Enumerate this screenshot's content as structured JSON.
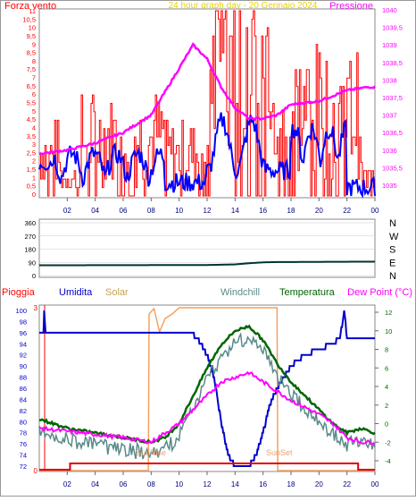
{
  "top_panel": {
    "left_title": "Forza vento",
    "center_title": "24 hour graph day - 20 Gennaio 2024",
    "right_title": "Pressione",
    "y_left_ticks": [
      "0",
      "0,5",
      "1",
      "1,5",
      "2",
      "2,5",
      "3",
      "3,5",
      "4",
      "4,5",
      "5",
      "5,5",
      "6",
      "6,5",
      "7",
      "7,5",
      "8",
      "8,5",
      "9",
      "9,5",
      "10",
      "10,5",
      "11"
    ],
    "y_right_ticks": [
      "1035",
      "1035,5",
      "1036",
      "1036,5",
      "1037",
      "1037,5",
      "1038",
      "1038,5",
      "1039",
      "1039,5",
      "1040"
    ],
    "x_ticks": [
      "02",
      "04",
      "06",
      "08",
      "10",
      "12",
      "14",
      "16",
      "18",
      "20",
      "22",
      "00"
    ]
  },
  "direction_panel": {
    "y_ticks": [
      "0",
      "90",
      "180",
      "270",
      "360"
    ],
    "compass": [
      "N",
      "W",
      "S",
      "E",
      "N"
    ]
  },
  "bottom_panel": {
    "labels": {
      "pioggia": "Pioggia",
      "umidita": "Umidita",
      "solar": "Solar",
      "windchill": "Windchill",
      "temperatura": "Temperatura",
      "dewpoint": "Dew Point (°C)"
    },
    "y_left_ticks": [
      "72",
      "74",
      "76",
      "78",
      "80",
      "82",
      "84",
      "86",
      "88",
      "90",
      "92",
      "94",
      "96",
      "98",
      "100"
    ],
    "y_right_ticks": [
      "-4",
      "-2",
      "0",
      "2",
      "4",
      "6",
      "8",
      "10",
      "12"
    ],
    "x_ticks": [
      "02",
      "04",
      "06",
      "08",
      "10",
      "12",
      "14",
      "16",
      "18",
      "20",
      "22",
      "00"
    ],
    "rain_axis": {
      "top": "3",
      "bottom": "0"
    },
    "sunrise": "SunRise",
    "sunset": "SunSet"
  },
  "colors": {
    "wind_gust": "#ff0000",
    "wind_avg": "#0000ff",
    "pressure": "#ff00ff",
    "direction": "#003333",
    "humidity": "#0000cc",
    "solar": "#f5a060",
    "windchill": "#5a8a8a",
    "temperature": "#006600",
    "dewpoint": "#ff00ff",
    "rain": "#dd0000"
  }
}
